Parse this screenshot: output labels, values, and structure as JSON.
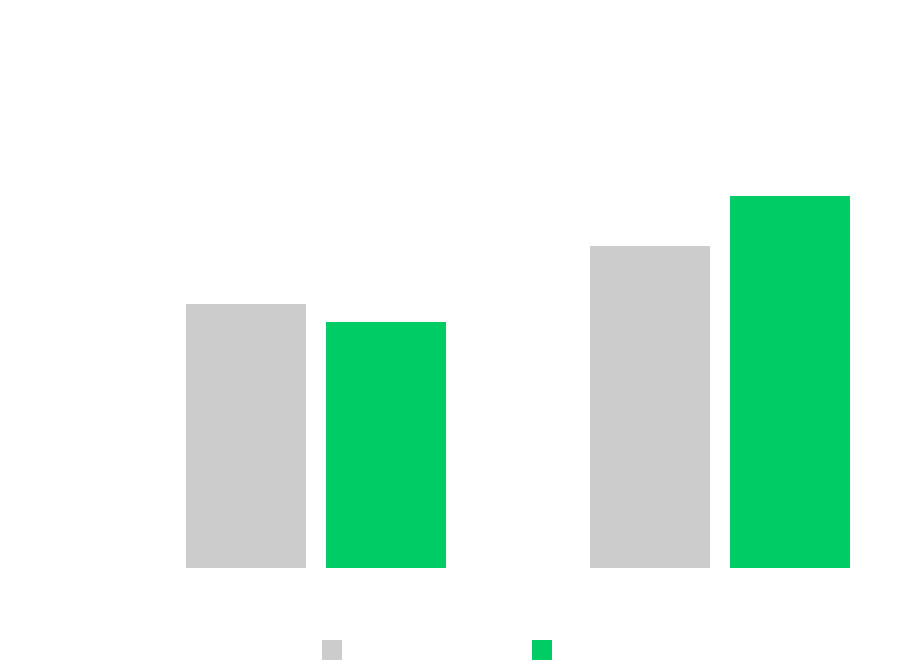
{
  "chart_data": {
    "type": "bar",
    "categories": [
      null,
      null
    ],
    "series": [
      {
        "color": "#cccccc",
        "values": [
          264,
          322
        ]
      },
      {
        "color": "#00cc66",
        "values": [
          246,
          372
        ]
      }
    ],
    "ylim": [
      0,
      400
    ],
    "legend": "bottom"
  }
}
